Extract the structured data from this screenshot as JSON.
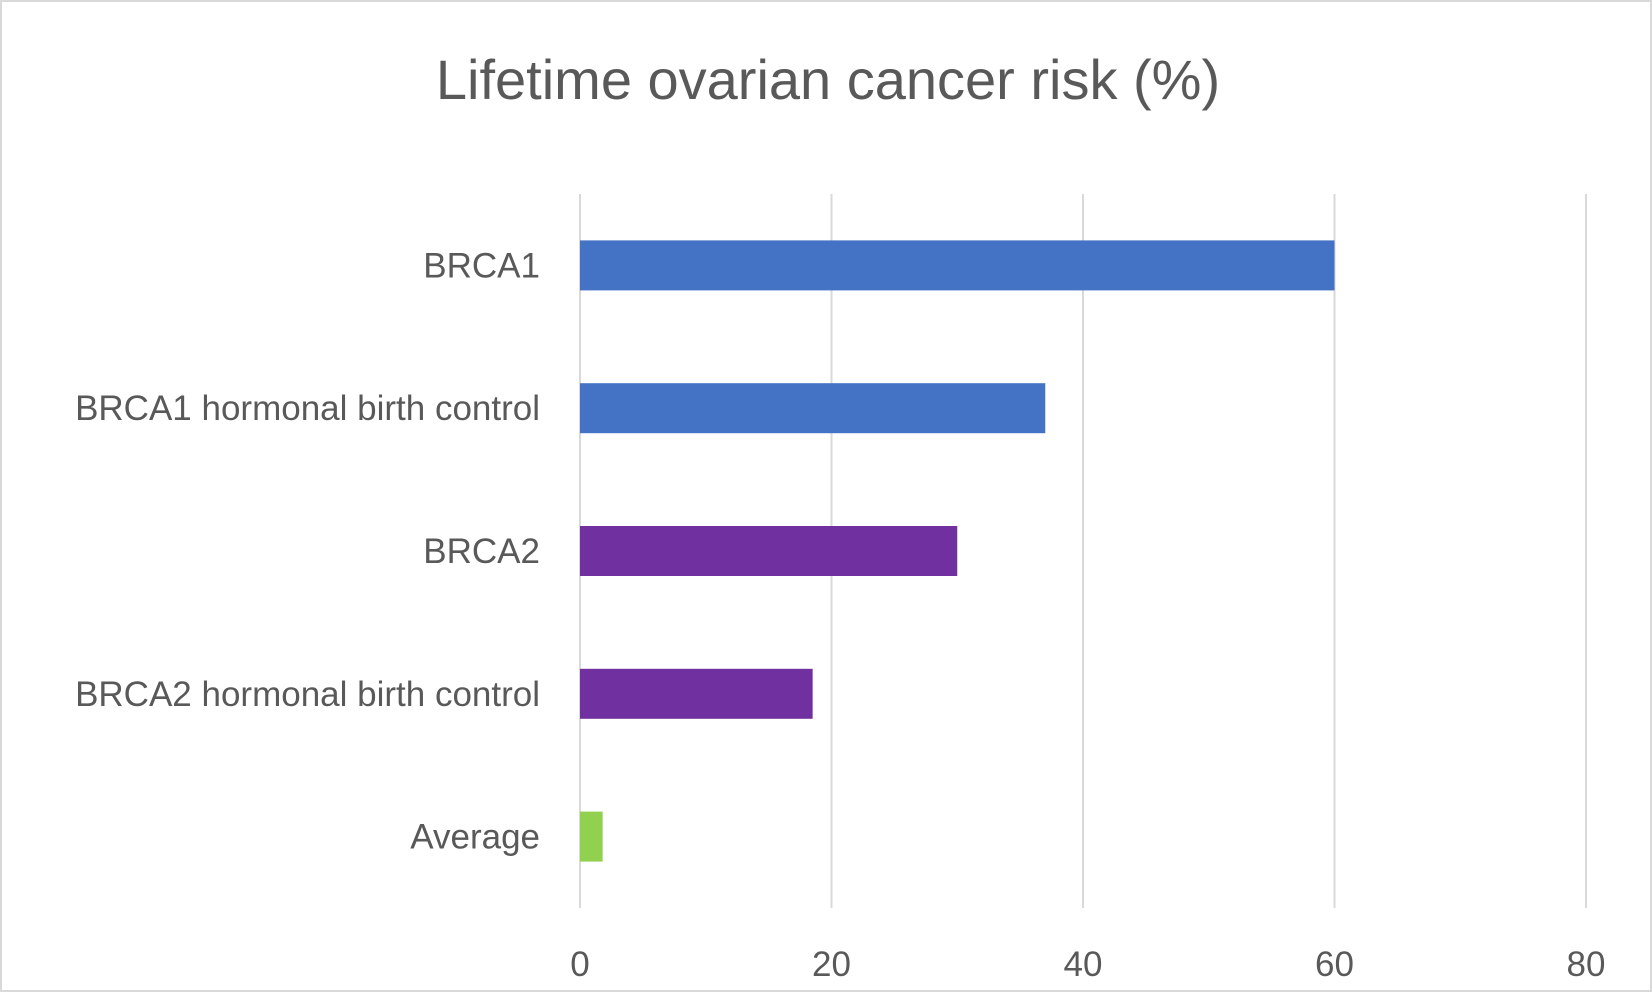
{
  "chart_data": {
    "type": "bar",
    "orientation": "horizontal",
    "title": "Lifetime ovarian cancer risk (%)",
    "xlabel": "",
    "ylabel": "",
    "categories": [
      "BRCA1",
      "BRCA1 hormonal birth control",
      "BRCA2",
      "BRCA2 hormonal birth control",
      "Average"
    ],
    "values": [
      60,
      37,
      30,
      18.5,
      1.8
    ],
    "bar_colors": [
      "#4472c4",
      "#4472c4",
      "#7030a0",
      "#7030a0",
      "#92d050"
    ],
    "xlim": [
      0,
      80
    ],
    "x_ticks": [
      "0",
      "20",
      "40",
      "60",
      "80"
    ],
    "grid": true,
    "legend": "none"
  }
}
